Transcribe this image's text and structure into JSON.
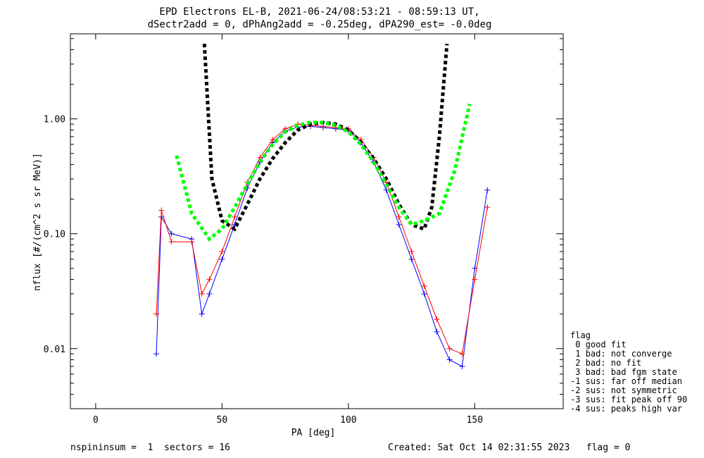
{
  "chart_data": {
    "type": "scatter",
    "title": "EPD Electrons EL-B, 2021-06-24/08:53:21 - 08:59:13 UT,",
    "subtitle": "dSectr2add = 0, dPhAng2add = -0.25deg, dPA290_est=  -0.0deg",
    "xlabel": "PA [deg]",
    "ylabel": "nflux [#/(cm^2 s sr MeV)]",
    "xlim": [
      -10,
      185
    ],
    "ylim": [
      0.003,
      5.5
    ],
    "yscale": "log",
    "xticks": [
      0,
      50,
      100,
      150
    ],
    "yticks": [
      {
        "value": 0.01,
        "label": "0.01"
      },
      {
        "value": 0.1,
        "label": "0.10"
      },
      {
        "value": 1.0,
        "label": "1.00"
      }
    ],
    "series": [
      {
        "color": "#0000ff",
        "x": [
          24,
          26,
          30,
          38,
          42,
          45,
          50,
          55,
          60,
          65,
          70,
          75,
          80,
          85,
          90,
          95,
          100,
          105,
          110,
          115,
          120,
          125,
          130,
          135,
          140,
          145,
          150,
          155
        ],
        "y": [
          0.009,
          0.14,
          0.1,
          0.09,
          0.02,
          0.03,
          0.06,
          0.12,
          0.25,
          0.42,
          0.62,
          0.78,
          0.85,
          0.86,
          0.84,
          0.82,
          0.8,
          0.62,
          0.42,
          0.24,
          0.12,
          0.06,
          0.03,
          0.014,
          0.008,
          0.007,
          0.05,
          0.24
        ]
      },
      {
        "color": "#ff0000",
        "x": [
          24,
          26,
          30,
          38,
          42,
          45,
          50,
          55,
          60,
          65,
          70,
          75,
          80,
          85,
          90,
          95,
          100,
          105,
          110,
          115,
          120,
          125,
          130,
          135,
          140,
          145,
          150,
          155
        ],
        "y": [
          0.02,
          0.16,
          0.085,
          0.085,
          0.03,
          0.04,
          0.07,
          0.14,
          0.28,
          0.46,
          0.66,
          0.82,
          0.9,
          0.88,
          0.86,
          0.84,
          0.82,
          0.66,
          0.46,
          0.28,
          0.14,
          0.07,
          0.035,
          0.018,
          0.01,
          0.009,
          0.04,
          0.17
        ]
      },
      {
        "color": "#000000",
        "dashed": true,
        "x": [
          43,
          46,
          50,
          55,
          60,
          65,
          70,
          75,
          80,
          85,
          90,
          95,
          100,
          105,
          110,
          115,
          120,
          125,
          130,
          133,
          136,
          139
        ],
        "y": [
          4.5,
          0.3,
          0.13,
          0.11,
          0.18,
          0.3,
          0.45,
          0.62,
          0.8,
          0.9,
          0.93,
          0.9,
          0.8,
          0.62,
          0.45,
          0.3,
          0.18,
          0.12,
          0.11,
          0.17,
          0.7,
          4.5
        ]
      },
      {
        "color": "#00ff00",
        "dashed": true,
        "x": [
          32,
          38,
          45,
          50,
          55,
          60,
          65,
          70,
          75,
          80,
          85,
          90,
          95,
          100,
          105,
          110,
          115,
          120,
          125,
          130,
          136,
          142,
          148
        ],
        "y": [
          0.48,
          0.15,
          0.09,
          0.11,
          0.17,
          0.27,
          0.42,
          0.6,
          0.77,
          0.88,
          0.93,
          0.93,
          0.88,
          0.77,
          0.6,
          0.42,
          0.27,
          0.17,
          0.12,
          0.13,
          0.15,
          0.35,
          1.35
        ]
      }
    ]
  },
  "legend": {
    "title": "flag",
    "items": [
      " 0 good fit",
      " 1 bad: not converge",
      " 2 bad: no fit",
      " 3 bad: bad fgm state",
      "-1 sus: far off median",
      "-2 sus: not symmetric",
      "-3 sus: fit peak off 90",
      "-4 sus: peaks high var"
    ]
  },
  "footer": {
    "left": "nspininsum =  1  sectors = 16",
    "right": "Created: Sat Oct 14 02:31:55 2023   flag = 0"
  }
}
